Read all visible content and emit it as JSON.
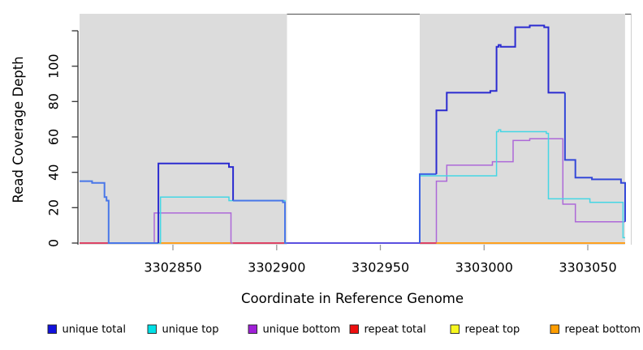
{
  "chart_data": {
    "type": "line",
    "subtype": "step-coverage-plot",
    "title": "",
    "xlabel": "Coordinate in Reference Genome",
    "ylabel": "Read Coverage Depth",
    "xlim": [
      3302805,
      3303068
    ],
    "ylim": [
      0,
      120
    ],
    "grid": false,
    "background_color": "#dcdcdc",
    "shaded_regions": [
      [
        3302805,
        3302905
      ],
      [
        3302969,
        3303068
      ]
    ],
    "white_gap": [
      3302905,
      3302969
    ],
    "x_ticks": [
      {
        "v": 3302850,
        "label": "3302850"
      },
      {
        "v": 3302900,
        "label": "3302900"
      },
      {
        "v": 3302950,
        "label": "3302950"
      },
      {
        "v": 3303000,
        "label": "3303000"
      },
      {
        "v": 3303050,
        "label": "3303050"
      }
    ],
    "y_ticks": [
      {
        "v": 0,
        "label": "0"
      },
      {
        "v": 20,
        "label": "20"
      },
      {
        "v": 40,
        "label": "40"
      },
      {
        "v": 60,
        "label": "60"
      },
      {
        "v": 80,
        "label": "80"
      },
      {
        "v": 100,
        "label": "100"
      },
      {
        "v": 120,
        "label": ""
      }
    ],
    "series": [
      {
        "name": "unique total",
        "color": "#2b2bd0",
        "width": 2,
        "points": [
          [
            3302805,
            35
          ],
          [
            3302811,
            35
          ],
          [
            3302811,
            34
          ],
          [
            3302817,
            34
          ],
          [
            3302817,
            26
          ],
          [
            3302818,
            26
          ],
          [
            3302818,
            24
          ],
          [
            3302819,
            24
          ],
          [
            3302819,
            0
          ],
          [
            3302843,
            0
          ],
          [
            3302843,
            45
          ],
          [
            3302877,
            45
          ],
          [
            3302877,
            43
          ],
          [
            3302879,
            43
          ],
          [
            3302879,
            24
          ],
          [
            3302903,
            24
          ],
          [
            3302903,
            23
          ],
          [
            3302904,
            23
          ],
          [
            3302904,
            0
          ],
          [
            3302969,
            0
          ],
          [
            3302969,
            39
          ],
          [
            3302977,
            39
          ],
          [
            3302977,
            75
          ],
          [
            3302982,
            75
          ],
          [
            3302982,
            85
          ],
          [
            3303003,
            85
          ],
          [
            3303003,
            86
          ],
          [
            3303006,
            86
          ],
          [
            3303006,
            111
          ],
          [
            3303007,
            111
          ],
          [
            3303007,
            112
          ],
          [
            3303008,
            112
          ],
          [
            3303008,
            111
          ],
          [
            3303015,
            111
          ],
          [
            3303015,
            122
          ],
          [
            3303022,
            122
          ],
          [
            3303022,
            123
          ],
          [
            3303029,
            123
          ],
          [
            3303029,
            122
          ],
          [
            3303031,
            122
          ],
          [
            3303031,
            85
          ],
          [
            3303039,
            85
          ],
          [
            3303039,
            47
          ],
          [
            3303044,
            47
          ],
          [
            3303044,
            37
          ],
          [
            3303052,
            37
          ],
          [
            3303052,
            36
          ],
          [
            3303066,
            36
          ],
          [
            3303066,
            34
          ],
          [
            3303068,
            34
          ],
          [
            3303068,
            12
          ]
        ]
      },
      {
        "name": "unique top",
        "color": "#45d6e4",
        "width": 1.5,
        "points": [
          [
            3302805,
            35
          ],
          [
            3302811,
            35
          ],
          [
            3302811,
            34
          ],
          [
            3302817,
            34
          ],
          [
            3302817,
            26
          ],
          [
            3302818,
            26
          ],
          [
            3302818,
            24
          ],
          [
            3302819,
            24
          ],
          [
            3302819,
            0
          ],
          [
            3302844,
            0
          ],
          [
            3302844,
            26
          ],
          [
            3302877,
            26
          ],
          [
            3302877,
            24
          ],
          [
            3302904,
            24
          ],
          [
            3302904,
            0
          ],
          [
            3302969,
            0
          ],
          [
            3302969,
            38
          ],
          [
            3303006,
            38
          ],
          [
            3303006,
            63
          ],
          [
            3303007,
            63
          ],
          [
            3303007,
            64
          ],
          [
            3303008,
            64
          ],
          [
            3303008,
            63
          ],
          [
            3303030,
            63
          ],
          [
            3303030,
            62
          ],
          [
            3303031,
            62
          ],
          [
            3303031,
            25
          ],
          [
            3303051,
            25
          ],
          [
            3303051,
            23
          ],
          [
            3303067,
            23
          ],
          [
            3303067,
            3
          ],
          [
            3303068,
            3
          ]
        ]
      },
      {
        "name": "unique bottom",
        "color": "#ad68d8",
        "width": 1.5,
        "points": [
          [
            3302805,
            0
          ],
          [
            3302841,
            0
          ],
          [
            3302841,
            17
          ],
          [
            3302878,
            17
          ],
          [
            3302878,
            0
          ],
          [
            3302977,
            0
          ],
          [
            3302977,
            35
          ],
          [
            3302982,
            35
          ],
          [
            3302982,
            44
          ],
          [
            3303004,
            44
          ],
          [
            3303004,
            46
          ],
          [
            3303014,
            46
          ],
          [
            3303014,
            58
          ],
          [
            3303022,
            58
          ],
          [
            3303022,
            59
          ],
          [
            3303038,
            59
          ],
          [
            3303038,
            22
          ],
          [
            3303044,
            22
          ],
          [
            3303044,
            12
          ],
          [
            3303068,
            12
          ]
        ]
      },
      {
        "name": "repeat total",
        "color": "#dd4466",
        "width": 1.5,
        "points": [
          [
            3302805,
            0
          ],
          [
            3303068,
            0
          ]
        ]
      },
      {
        "name": "repeat top",
        "color": "#f7f71f",
        "width": 1.5,
        "points": [
          [
            3302805,
            0
          ],
          [
            3303068,
            0
          ]
        ]
      },
      {
        "name": "repeat bottom",
        "color": "#ffa11f",
        "width": 2,
        "points": [
          [
            3302805,
            0
          ],
          [
            3303068,
            0
          ]
        ]
      }
    ],
    "render": {
      "unique_total_segments": [
        {
          "color": "#4a77e8",
          "points": [
            [
              3302805,
              35
            ],
            [
              3302811,
              35
            ],
            [
              3302811,
              34
            ],
            [
              3302817,
              34
            ],
            [
              3302817,
              26
            ],
            [
              3302818,
              26
            ],
            [
              3302818,
              24
            ],
            [
              3302819,
              24
            ],
            [
              3302819,
              0
            ],
            [
              3302843,
              0
            ]
          ]
        },
        {
          "color": "#2b2bd0",
          "points": [
            [
              3302843,
              0
            ],
            [
              3302843,
              45
            ],
            [
              3302877,
              45
            ],
            [
              3302877,
              43
            ],
            [
              3302879,
              43
            ],
            [
              3302879,
              24
            ]
          ]
        },
        {
          "color": "#4a77e8",
          "points": [
            [
              3302879,
              24
            ],
            [
              3302903,
              24
            ],
            [
              3302903,
              23
            ],
            [
              3302904,
              23
            ],
            [
              3302904,
              0
            ],
            [
              3302905,
              0
            ]
          ]
        },
        {
          "color": "#3b63e4",
          "points": [
            [
              3302969,
              0
            ],
            [
              3302969,
              39
            ],
            [
              3302977,
              39
            ]
          ]
        },
        {
          "color": "#2b2bd0",
          "points": [
            [
              3302977,
              39
            ],
            [
              3302977,
              75
            ],
            [
              3302982,
              75
            ],
            [
              3302982,
              85
            ],
            [
              3303003,
              85
            ],
            [
              3303003,
              86
            ],
            [
              3303006,
              86
            ],
            [
              3303006,
              111
            ],
            [
              3303007,
              111
            ],
            [
              3303007,
              112
            ],
            [
              3303008,
              112
            ],
            [
              3303008,
              111
            ],
            [
              3303015,
              111
            ],
            [
              3303015,
              122
            ],
            [
              3303022,
              122
            ],
            [
              3303022,
              123
            ],
            [
              3303029,
              123
            ],
            [
              3303029,
              122
            ],
            [
              3303031,
              122
            ],
            [
              3303031,
              85
            ],
            [
              3303039,
              85
            ]
          ]
        },
        {
          "color": "#3448d8",
          "points": [
            [
              3303039,
              85
            ],
            [
              3303039,
              47
            ],
            [
              3303044,
              47
            ],
            [
              3303044,
              37
            ],
            [
              3303052,
              37
            ],
            [
              3303052,
              36
            ],
            [
              3303066,
              36
            ],
            [
              3303066,
              34
            ],
            [
              3303068,
              34
            ],
            [
              3303068,
              12
            ]
          ]
        }
      ],
      "baseline_overlays": [
        {
          "color": "#dd4466",
          "from": 3302805,
          "to": 3302819
        },
        {
          "color": "#dd4466",
          "from": 3302879,
          "to": 3302905
        },
        {
          "color": "#5b4fe0",
          "from": 3302905,
          "to": 3302969
        },
        {
          "color": "#dd4466",
          "from": 3302969,
          "to": 3302977
        },
        {
          "color": "#ffa11f",
          "from": 3302977,
          "to": 3303068
        }
      ]
    }
  },
  "legend": {
    "items": [
      {
        "label": "unique total",
        "color": "#1212dd"
      },
      {
        "label": "unique top",
        "color": "#00e0e6"
      },
      {
        "label": "unique bottom",
        "color": "#a020d8"
      },
      {
        "label": "repeat total",
        "color": "#ee0f0f"
      },
      {
        "label": "repeat top",
        "color": "#f7f71f"
      },
      {
        "label": "repeat bottom",
        "color": "#ff9d00"
      }
    ]
  }
}
